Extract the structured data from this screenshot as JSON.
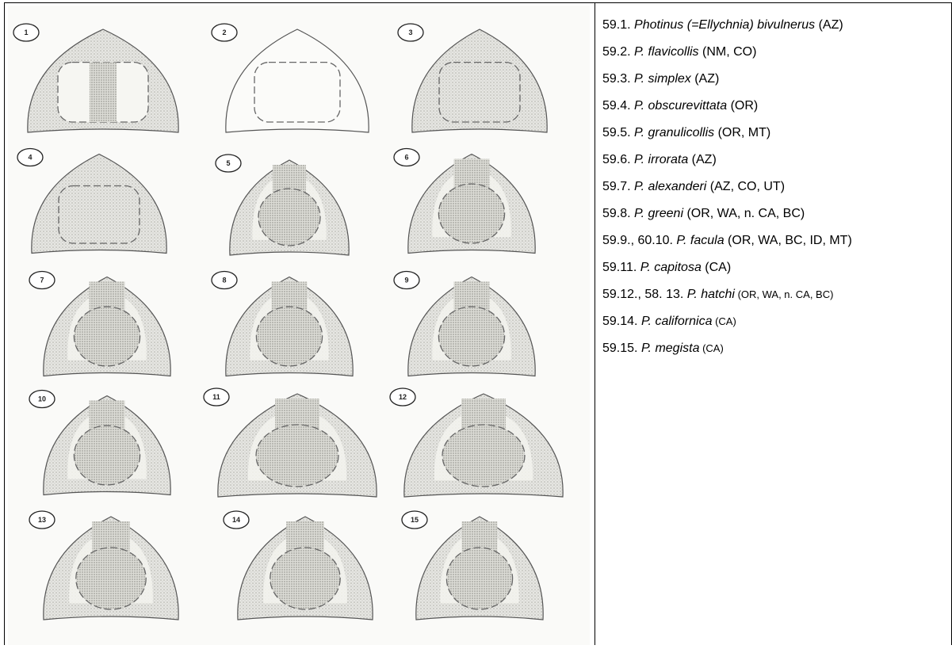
{
  "figure": {
    "labels": [
      "1",
      "2",
      "3",
      "4",
      "5",
      "6",
      "7",
      "8",
      "9",
      "10",
      "11",
      "12",
      "13",
      "14",
      "15"
    ]
  },
  "captions": [
    {
      "num": "59.1. ",
      "name": "Photinus (=Ellychnia) bivulnerus",
      "loc": " (AZ)",
      "small": false
    },
    {
      "num": "59.2. ",
      "name": "P. flavicollis",
      "loc": " (NM, CO)",
      "small": false
    },
    {
      "num": "59.3. ",
      "name": "P. simplex",
      "loc": " (AZ)",
      "small": false
    },
    {
      "num": "59.4. ",
      "name": "P. obscurevittata",
      "loc": " (OR)",
      "small": false
    },
    {
      "num": "59.5. ",
      "name": "P. granulicollis",
      "loc": " (OR, MT)",
      "small": false
    },
    {
      "num": "59.6. ",
      "name": "P. irrorata",
      "loc": " (AZ)",
      "small": false
    },
    {
      "num": "59.7. ",
      "name": "P. alexanderi",
      "loc": " (AZ, CO, UT)",
      "small": false
    },
    {
      "num": "59.8. ",
      "name": "P. greeni",
      "loc": " (OR, WA, n. CA, BC)",
      "small": false
    },
    {
      "num": "59.9., 60.10. ",
      "name": "P. facula",
      "loc": " (OR, WA, BC, ID, MT)",
      "small": false
    },
    {
      "num": "59.11. ",
      "name": "P. capitosa",
      "loc": " (CA)",
      "small": false
    },
    {
      "num": "59.12., 58. 13. ",
      "name": "P. hatchi",
      "loc": " (OR, WA, n. CA, BC)",
      "small": true
    },
    {
      "num": "59.14. ",
      "name": "P. californica",
      "loc": " (CA)",
      "small": true
    },
    {
      "num": "59.15. ",
      "name": "P. megista",
      "loc": " (CA)",
      "small": true
    }
  ]
}
